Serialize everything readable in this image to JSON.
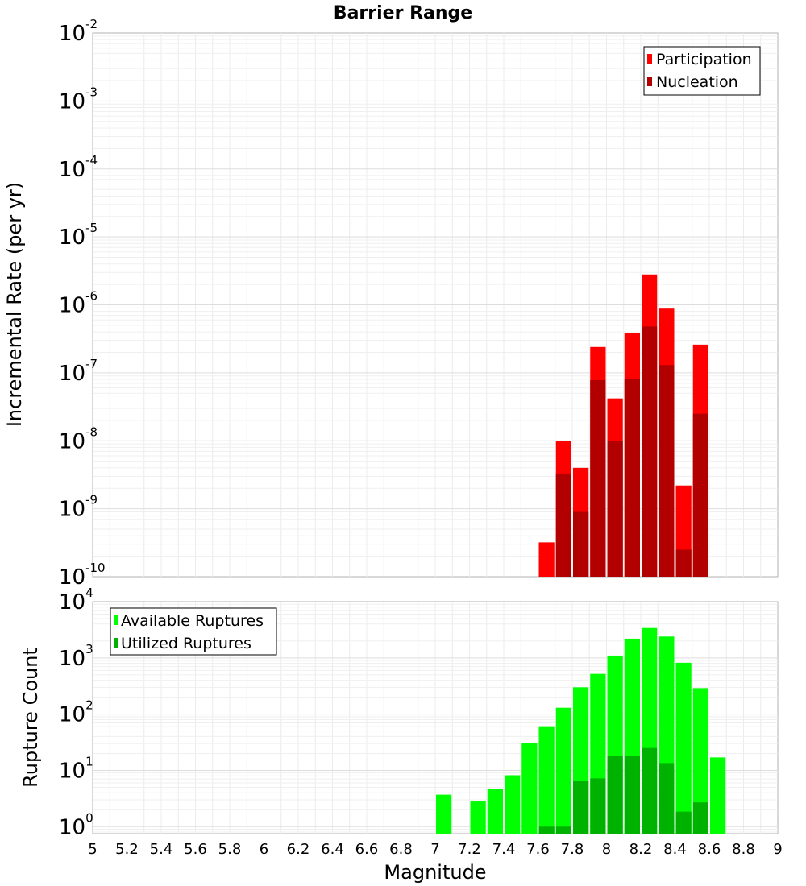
{
  "title": "Barrier Range",
  "xlabel": "Magnitude",
  "x_ticks": [
    "5",
    "5.2",
    "5.4",
    "5.6",
    "5.8",
    "6",
    "6.2",
    "6.4",
    "6.6",
    "6.8",
    "7",
    "7.2",
    "7.4",
    "7.6",
    "7.8",
    "8",
    "8.2",
    "8.4",
    "8.6",
    "8.8",
    "9"
  ],
  "chart_data": [
    {
      "type": "bar",
      "panel": "top",
      "title": "Barrier Range",
      "xlabel": "Magnitude",
      "ylabel": "Incremental Rate (per yr)",
      "xlim": [
        5,
        9
      ],
      "ylim": [
        1e-10,
        0.01
      ],
      "yscale": "log",
      "y_tick_labels": [
        {
          "base": "10",
          "exp": "-10"
        },
        {
          "base": "10",
          "exp": "-9"
        },
        {
          "base": "10",
          "exp": "-8"
        },
        {
          "base": "10",
          "exp": "-7"
        },
        {
          "base": "10",
          "exp": "-6"
        },
        {
          "base": "10",
          "exp": "-5"
        },
        {
          "base": "10",
          "exp": "-4"
        },
        {
          "base": "10",
          "exp": "-3"
        },
        {
          "base": "10",
          "exp": "-2"
        }
      ],
      "legend_position": "top-right",
      "bin_width": 0.1,
      "series": [
        {
          "name": "Participation",
          "color": "#ff0000",
          "x": [
            7.65,
            7.75,
            7.85,
            7.95,
            8.05,
            8.15,
            8.25,
            8.35,
            8.45,
            8.55
          ],
          "values": [
            3.2e-10,
            1e-08,
            4e-09,
            2.4e-07,
            4.2e-08,
            3.8e-07,
            2.8e-06,
            8.8e-07,
            2.2e-09,
            2.6e-07
          ]
        },
        {
          "name": "Nucleation",
          "color": "#b20000",
          "x": [
            7.75,
            7.85,
            7.95,
            8.05,
            8.15,
            8.25,
            8.35,
            8.45,
            8.55
          ],
          "values": [
            3.3e-09,
            9e-10,
            7.8e-08,
            1e-08,
            8e-08,
            4.8e-07,
            1.3e-07,
            2.5e-10,
            2.5e-08
          ]
        }
      ]
    },
    {
      "type": "bar",
      "panel": "bottom",
      "xlabel": "Magnitude",
      "ylabel": "Rupture Count",
      "xlim": [
        5,
        9
      ],
      "ylim": [
        0.75,
        10000.0
      ],
      "yscale": "log",
      "y_tick_labels": [
        {
          "base": "10",
          "exp": "0"
        },
        {
          "base": "10",
          "exp": "1"
        },
        {
          "base": "10",
          "exp": "2"
        },
        {
          "base": "10",
          "exp": "3"
        },
        {
          "base": "10",
          "exp": "4"
        }
      ],
      "legend_position": "top-left",
      "bin_width": 0.1,
      "series": [
        {
          "name": "Available Ruptures",
          "color": "#00ff00",
          "x": [
            7.05,
            7.25,
            7.35,
            7.45,
            7.55,
            7.65,
            7.75,
            7.85,
            7.95,
            8.05,
            8.15,
            8.25,
            8.35,
            8.45,
            8.55,
            8.65
          ],
          "values": [
            3.7,
            2.8,
            4.6,
            8.2,
            31,
            61,
            130,
            300,
            520,
            1100,
            2200,
            3400,
            2400,
            820,
            290,
            17
          ]
        },
        {
          "name": "Utilized Ruptures",
          "color": "#00b200",
          "x": [
            7.65,
            7.75,
            7.85,
            7.95,
            8.05,
            8.15,
            8.25,
            8.35,
            8.45,
            8.55
          ],
          "values": [
            1,
            1,
            6.4,
            7.2,
            18,
            18,
            25,
            13.5,
            1.85,
            2.7
          ]
        }
      ]
    }
  ]
}
